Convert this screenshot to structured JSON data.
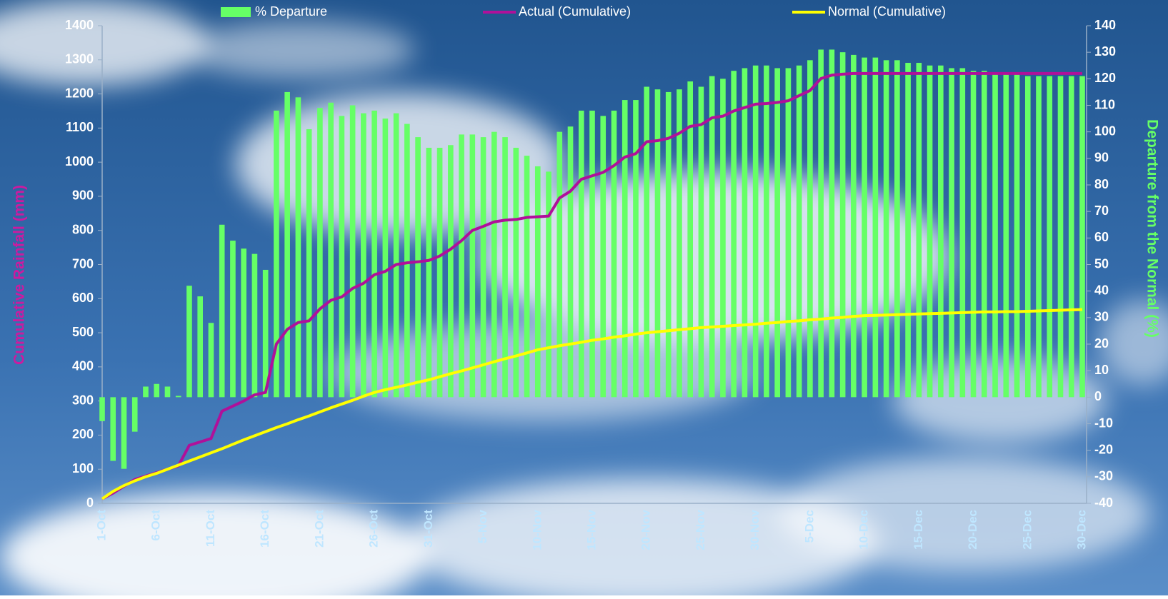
{
  "chart_data": {
    "type": "combo",
    "ylabel": "Cumulative Rainfall (mm)",
    "y2label": "Departure from the Normal (%)",
    "categories": [
      "1-Oct",
      null,
      null,
      null,
      null,
      "6-Oct",
      null,
      null,
      null,
      null,
      "11-Oct",
      null,
      null,
      null,
      null,
      "16-Oct",
      null,
      null,
      null,
      null,
      "21-Oct",
      null,
      null,
      null,
      null,
      "26-Oct",
      null,
      null,
      null,
      null,
      "31-Oct",
      null,
      null,
      null,
      null,
      "5-Nov",
      null,
      null,
      null,
      null,
      "10-Nov",
      null,
      null,
      null,
      null,
      "15-Nov",
      null,
      null,
      null,
      null,
      "20-Nov",
      null,
      null,
      null,
      null,
      "25-Nov",
      null,
      null,
      null,
      null,
      "30-Nov",
      null,
      null,
      null,
      null,
      "5-Dec",
      null,
      null,
      null,
      null,
      "10-Dec",
      null,
      null,
      null,
      null,
      "15-Dec",
      null,
      null,
      null,
      null,
      "20-Dec",
      null,
      null,
      null,
      null,
      "25-Dec",
      null,
      null,
      null,
      null,
      "30-Dec"
    ],
    "ylim": [
      0,
      1400
    ],
    "yticks": [
      0,
      100,
      200,
      300,
      400,
      500,
      600,
      700,
      800,
      900,
      1000,
      1100,
      1200,
      1300,
      1400
    ],
    "y2lim": [
      -40,
      140
    ],
    "y2ticks": [
      -40,
      -30,
      -20,
      -10,
      0,
      10,
      20,
      30,
      40,
      50,
      60,
      70,
      80,
      90,
      100,
      110,
      120,
      130,
      140
    ],
    "series": [
      {
        "name": "% Departure",
        "type": "bar",
        "axis": "y2",
        "color": "#66ff66",
        "values": [
          -9,
          -24,
          -27,
          -13,
          4,
          5,
          4,
          0.5,
          42,
          38,
          28,
          65,
          59,
          56,
          54,
          48,
          108,
          115,
          113,
          101,
          109,
          111,
          106,
          110,
          107,
          108,
          105,
          107,
          103,
          98,
          94,
          94,
          95,
          99,
          99,
          98,
          100,
          98,
          94,
          91,
          87,
          85,
          100,
          102,
          108,
          108,
          106,
          108,
          112,
          112,
          117,
          116,
          115,
          116,
          119,
          117,
          121,
          120,
          123,
          124,
          125,
          125,
          124,
          124,
          125,
          127,
          131,
          131,
          130,
          129,
          128,
          128,
          127,
          127,
          126,
          126,
          125,
          125,
          124,
          124,
          123,
          123,
          122,
          122,
          122,
          121,
          121,
          121,
          121,
          121,
          121
        ]
      },
      {
        "name": "Actual (Cumulative)",
        "type": "line",
        "axis": "y",
        "color": "#b0109a",
        "values": [
          13,
          30,
          50,
          70,
          80,
          90,
          100,
          110,
          170,
          180,
          190,
          270,
          285,
          300,
          318,
          325,
          467,
          510,
          530,
          535,
          570,
          595,
          605,
          630,
          645,
          670,
          680,
          700,
          705,
          708,
          712,
          725,
          745,
          770,
          800,
          812,
          825,
          830,
          832,
          838,
          840,
          842,
          895,
          915,
          950,
          960,
          970,
          990,
          1015,
          1025,
          1060,
          1063,
          1070,
          1085,
          1105,
          1110,
          1130,
          1135,
          1150,
          1160,
          1170,
          1172,
          1175,
          1180,
          1195,
          1210,
          1245,
          1255,
          1258,
          1260,
          1260,
          1260,
          1260,
          1260,
          1260,
          1260,
          1260,
          1260,
          1260,
          1260,
          1260,
          1260,
          1260,
          1260,
          1260,
          1260,
          1260,
          1260,
          1260,
          1260,
          1260
        ]
      },
      {
        "name": "Normal (Cumulative)",
        "type": "line",
        "axis": "y",
        "color": "#ffff00",
        "values": [
          13,
          35,
          52,
          66,
          78,
          88,
          100,
          112,
          124,
          136,
          148,
          160,
          173,
          186,
          198,
          210,
          222,
          233,
          245,
          256,
          268,
          280,
          291,
          302,
          314,
          325,
          333,
          340,
          347,
          355,
          362,
          371,
          380,
          388,
          397,
          406,
          415,
          424,
          432,
          441,
          450,
          456,
          462,
          467,
          472,
          478,
          482,
          487,
          491,
          496,
          500,
          503,
          506,
          509,
          512,
          515,
          517,
          519,
          521,
          523,
          525,
          528,
          530,
          533,
          535,
          538,
          540,
          543,
          545,
          548,
          550,
          551,
          552,
          553,
          554,
          555,
          556,
          557,
          558,
          559,
          560,
          561,
          561,
          562,
          562,
          563,
          564,
          565,
          566,
          567,
          568
        ]
      }
    ]
  }
}
